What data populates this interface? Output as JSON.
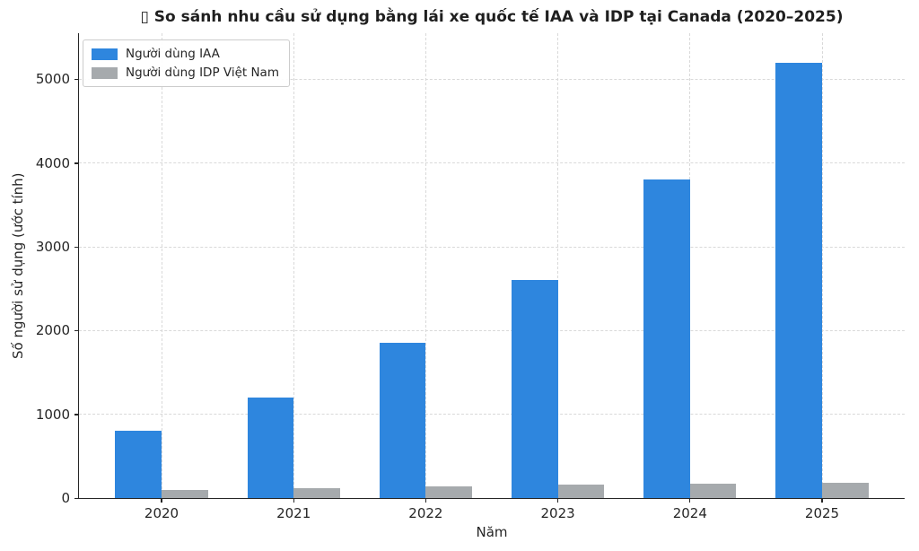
{
  "figure": {
    "background": "#ffffff"
  },
  "chart_data": {
    "type": "bar",
    "title": "▯ So sánh nhu cầu sử dụng bằng lái xe quốc tế IAA và IDP tại Canada (2020–2025)",
    "xlabel": "Năm",
    "ylabel": "Số người sử dụng (ước tính)",
    "categories": [
      "2020",
      "2021",
      "2022",
      "2023",
      "2024",
      "2025"
    ],
    "series": [
      {
        "name": "Người dùng IAA",
        "key": "iaa",
        "color": "#2E86DE",
        "values": [
          800,
          1200,
          1850,
          2600,
          3800,
          5200
        ]
      },
      {
        "name": "Người dùng IDP Việt Nam",
        "key": "idp",
        "color": "#A6AAAD",
        "values": [
          100,
          120,
          140,
          160,
          170,
          180
        ]
      }
    ],
    "yticks": [
      0,
      1000,
      2000,
      3000,
      4000,
      5000
    ],
    "ylim": [
      0,
      5550
    ],
    "grid": "dashed, horizontal and vertical, behind bars",
    "legend_position": "upper-left"
  },
  "styles": {
    "grid_color": "#d9d9d9",
    "spine_color": "#262626",
    "text_color": "#262626",
    "title_color": "#1f1f1f",
    "legend_border": "#cccccc"
  }
}
